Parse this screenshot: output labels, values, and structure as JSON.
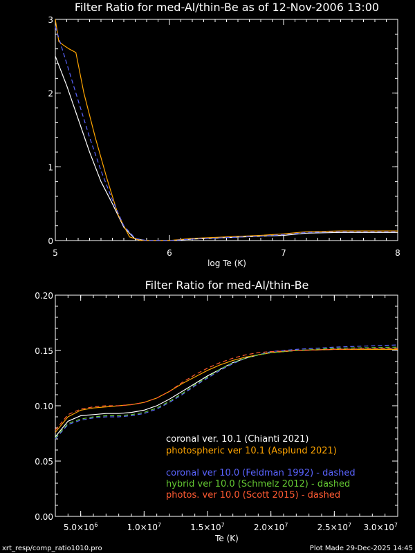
{
  "footer": {
    "left": "xrt_resp/comp_ratio1010.pro",
    "right": "Plot Made 29-Dec-2025 14:45"
  },
  "series_colors": {
    "coronal_10_1": "#ffffff",
    "photospheric_10_1": "#ffa500",
    "coronal_10_0": "#5a64ff",
    "hybrid_10_0": "#64c832",
    "photos_10_0": "#ff5a32"
  },
  "chart_data": [
    {
      "type": "line",
      "title": "Filter Ratio for med-Al/thin-Be as of 12-Nov-2006 13:00",
      "xlabel": "log Te (K)",
      "ylabel": "",
      "xlim": [
        5,
        8
      ],
      "ylim": [
        0,
        3
      ],
      "xticks": [
        5,
        6,
        7,
        8
      ],
      "xtick_labels": [
        "5",
        "6",
        "7",
        "8"
      ],
      "yticks": [
        0,
        1,
        2,
        3
      ],
      "ytick_labels": [
        "0",
        "1",
        "2",
        "3"
      ],
      "series": [
        {
          "key": "coronal_10_1",
          "style": "solid",
          "x": [
            5.0,
            5.1,
            5.2,
            5.3,
            5.4,
            5.5,
            5.6,
            5.7,
            5.8,
            6.0,
            6.2,
            6.5,
            6.8,
            7.0,
            7.2,
            7.5,
            8.0
          ],
          "y": [
            2.5,
            2.1,
            1.65,
            1.2,
            0.8,
            0.5,
            0.18,
            0.02,
            0.0,
            0.0,
            0.02,
            0.04,
            0.06,
            0.07,
            0.1,
            0.11,
            0.11
          ]
        },
        {
          "key": "photospheric_10_1",
          "style": "solid",
          "x": [
            5.0,
            5.03,
            5.07,
            5.12,
            5.18,
            5.25,
            5.35,
            5.45,
            5.55,
            5.65,
            5.75,
            6.0,
            6.2,
            6.5,
            6.8,
            7.0,
            7.2,
            7.5,
            8.0
          ],
          "y": [
            3.0,
            2.7,
            2.65,
            2.6,
            2.55,
            2.0,
            1.4,
            0.85,
            0.35,
            0.05,
            0.0,
            0.0,
            0.03,
            0.05,
            0.07,
            0.09,
            0.12,
            0.13,
            0.13
          ]
        },
        {
          "key": "coronal_10_0",
          "style": "dashed",
          "x": [
            5.0,
            5.1,
            5.2,
            5.3,
            5.4,
            5.5,
            5.6,
            5.7,
            5.8,
            6.0,
            6.2,
            6.5,
            6.8,
            7.0,
            7.2,
            7.5,
            8.0
          ],
          "y": [
            2.9,
            2.4,
            1.9,
            1.4,
            0.95,
            0.55,
            0.2,
            0.03,
            0.0,
            0.0,
            0.02,
            0.04,
            0.06,
            0.08,
            0.11,
            0.12,
            0.12
          ]
        }
      ]
    },
    {
      "type": "line",
      "title": "Filter Ratio for med-Al/thin-Be",
      "xlabel": "Te (K)",
      "ylabel": "",
      "xlim": [
        3000000,
        30000000
      ],
      "ylim": [
        0.0,
        0.2
      ],
      "xticks": [
        5000000,
        10000000,
        15000000,
        20000000,
        25000000,
        30000000
      ],
      "xtick_labels": [
        [
          "5.0×10",
          "6"
        ],
        [
          "1.0×10",
          "7"
        ],
        [
          "1.5×10",
          "7"
        ],
        [
          "2.0×10",
          "7"
        ],
        [
          "2.5×10",
          "7"
        ],
        [
          "3.0×10",
          "7"
        ]
      ],
      "yticks": [
        0.0,
        0.05,
        0.1,
        0.15,
        0.2
      ],
      "ytick_labels": [
        "0.00",
        "0.05",
        "0.10",
        "0.15",
        "0.20"
      ],
      "legend": [
        {
          "label": "coronal ver. 10.1 (Chianti 2021)",
          "key": "coronal_10_1"
        },
        {
          "label": "photospheric ver 10.1 (Asplund 2021)",
          "key": "photospheric_10_1"
        },
        {
          "label": "coronal ver 10.0 (Feldman 1992) - dashed",
          "key": "coronal_10_0"
        },
        {
          "label": "hybrid ver 10.0 (Schmelz 2012) - dashed",
          "key": "hybrid_10_0"
        },
        {
          "label": "photos. ver 10.0 (Scott 2015) - dashed",
          "key": "photos_10_0"
        }
      ],
      "series": [
        {
          "key": "coronal_10_1",
          "style": "solid",
          "x": [
            3000000,
            4000000,
            5000000,
            6000000,
            7000000,
            8000000,
            9000000,
            10000000,
            11000000,
            12000000,
            13000000,
            14000000,
            15000000,
            16000000,
            17000000,
            18000000,
            19000000,
            20000000,
            22000000,
            25000000,
            30000000
          ],
          "y": [
            0.072,
            0.086,
            0.091,
            0.092,
            0.093,
            0.093,
            0.094,
            0.096,
            0.1,
            0.106,
            0.113,
            0.12,
            0.127,
            0.133,
            0.139,
            0.143,
            0.146,
            0.148,
            0.15,
            0.151,
            0.151
          ]
        },
        {
          "key": "photospheric_10_1",
          "style": "solid",
          "x": [
            3000000,
            4000000,
            5000000,
            6000000,
            7000000,
            8000000,
            9000000,
            10000000,
            11000000,
            12000000,
            13000000,
            14000000,
            15000000,
            16000000,
            17000000,
            18000000,
            19000000,
            20000000,
            22000000,
            25000000,
            30000000
          ],
          "y": [
            0.076,
            0.09,
            0.096,
            0.098,
            0.099,
            0.1,
            0.101,
            0.103,
            0.107,
            0.113,
            0.12,
            0.126,
            0.132,
            0.137,
            0.141,
            0.144,
            0.146,
            0.148,
            0.15,
            0.151,
            0.151
          ]
        },
        {
          "key": "coronal_10_0",
          "style": "dashed",
          "x": [
            3000000,
            4000000,
            5000000,
            6000000,
            7000000,
            8000000,
            9000000,
            10000000,
            11000000,
            12000000,
            13000000,
            14000000,
            15000000,
            16000000,
            17000000,
            18000000,
            19000000,
            20000000,
            22000000,
            25000000,
            30000000
          ],
          "y": [
            0.07,
            0.083,
            0.087,
            0.089,
            0.09,
            0.09,
            0.091,
            0.093,
            0.097,
            0.103,
            0.11,
            0.118,
            0.125,
            0.132,
            0.138,
            0.143,
            0.146,
            0.149,
            0.151,
            0.153,
            0.155
          ]
        },
        {
          "key": "hybrid_10_0",
          "style": "dashed",
          "x": [
            3000000,
            4000000,
            5000000,
            6000000,
            7000000,
            8000000,
            9000000,
            10000000,
            11000000,
            12000000,
            13000000,
            14000000,
            15000000,
            16000000,
            17000000,
            18000000,
            19000000,
            20000000,
            22000000,
            25000000,
            30000000
          ],
          "y": [
            0.071,
            0.084,
            0.088,
            0.09,
            0.091,
            0.091,
            0.092,
            0.094,
            0.098,
            0.104,
            0.111,
            0.119,
            0.126,
            0.133,
            0.139,
            0.143,
            0.146,
            0.148,
            0.15,
            0.152,
            0.153
          ]
        },
        {
          "key": "photos_10_0",
          "style": "dashed",
          "x": [
            3000000,
            4000000,
            5000000,
            6000000,
            7000000,
            8000000,
            9000000,
            10000000,
            11000000,
            12000000,
            13000000,
            14000000,
            15000000,
            16000000,
            17000000,
            18000000,
            19000000,
            20000000,
            22000000,
            25000000,
            30000000
          ],
          "y": [
            0.078,
            0.092,
            0.097,
            0.099,
            0.1,
            0.1,
            0.101,
            0.103,
            0.107,
            0.113,
            0.121,
            0.128,
            0.134,
            0.139,
            0.143,
            0.146,
            0.148,
            0.149,
            0.15,
            0.151,
            0.152
          ]
        }
      ]
    }
  ]
}
